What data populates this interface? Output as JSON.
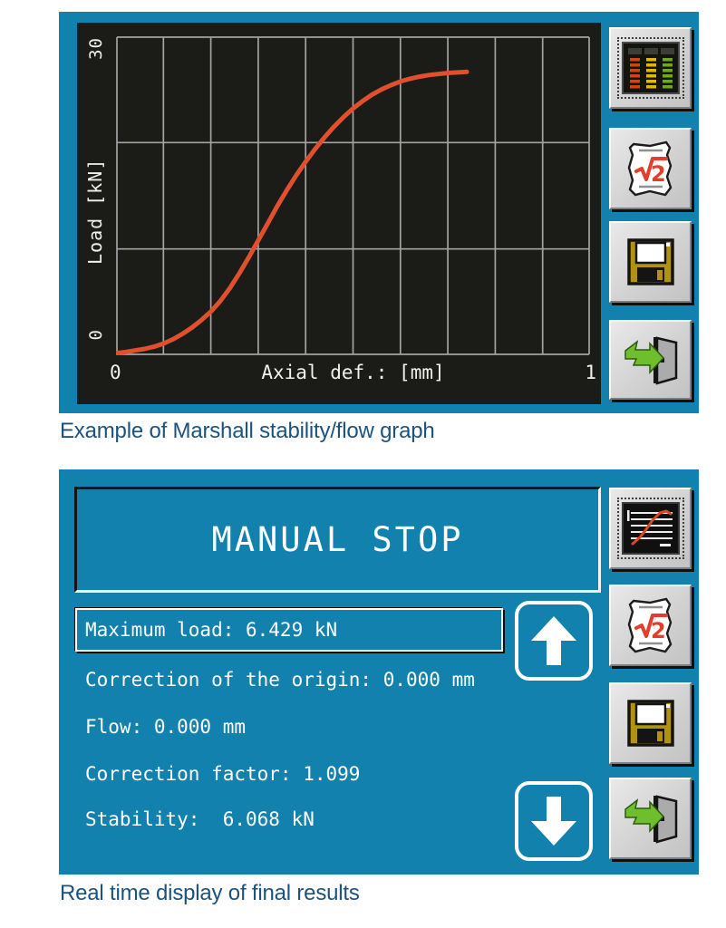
{
  "captions": {
    "top": "Example of Marshall stability/flow graph",
    "bottom": "Real time display of final results"
  },
  "colors": {
    "panel_blue": "#1381AE",
    "screen_dark": "#1B1B17",
    "grid_gray": "#A3A3A3",
    "curve_orange": "#E0502C",
    "caption_blue": "#1A5380",
    "sqrt_red": "#E0402A",
    "arrow_green": "#6FBE2E",
    "floppy_gold": "#B29310"
  },
  "top_screen": {
    "y_tick_max": "30",
    "y_tick_min": "0",
    "y_axis_label": "Load [kN]",
    "x_tick_min": "0",
    "x_tick_max": "1",
    "x_axis_label": "Axial def.: [mm]"
  },
  "chart_data": {
    "type": "line",
    "title": "",
    "xlabel": "Axial def.: [mm]",
    "ylabel": "Load [kN]",
    "xlim": [
      0,
      1
    ],
    "ylim": [
      0,
      30
    ],
    "grid": {
      "columns": 10,
      "rows": 3,
      "color": "#A3A3A3"
    },
    "legend": "none",
    "line_color": "#E0502C",
    "series": [
      {
        "name": "load_vs_axial_deformation",
        "x": [
          0,
          0.02,
          0.04,
          0.06,
          0.08,
          0.1,
          0.12,
          0.14,
          0.16,
          0.18,
          0.2,
          0.22,
          0.24,
          0.26,
          0.28,
          0.3,
          0.32,
          0.34,
          0.36,
          0.38,
          0.4,
          0.42,
          0.44,
          0.46,
          0.48,
          0.5,
          0.52,
          0.54,
          0.56,
          0.58,
          0.6,
          0.62,
          0.64,
          0.66,
          0.68,
          0.7,
          0.72,
          0.74
        ],
        "y": [
          0.2,
          0.3,
          0.45,
          0.6,
          0.8,
          1.1,
          1.5,
          2.0,
          2.6,
          3.3,
          4.1,
          5.1,
          6.3,
          7.7,
          9.2,
          10.8,
          12.4,
          14.0,
          15.5,
          16.9,
          18.2,
          19.4,
          20.5,
          21.5,
          22.4,
          23.2,
          23.9,
          24.5,
          25.0,
          25.4,
          25.75,
          26.0,
          26.2,
          26.35,
          26.45,
          26.55,
          26.6,
          26.65
        ]
      }
    ]
  },
  "bottom_screen": {
    "status_title": "MANUAL STOP",
    "results": [
      {
        "label": "Maximum load: 6.429 kN",
        "selected": true
      },
      {
        "label": "Correction of the origin: 0.000 mm",
        "selected": false
      },
      {
        "label": "Flow: 0.000 mm",
        "selected": false
      },
      {
        "label": "Correction factor: 1.099",
        "selected": false
      },
      {
        "label": "Stability:  6.068 kN",
        "selected": false
      }
    ]
  },
  "icons": {
    "top_buttons": [
      "data-table-icon",
      "sqrt2-icon",
      "save-icon",
      "exit-icon"
    ],
    "bottom_buttons": [
      "graph-report-icon",
      "sqrt2-icon",
      "save-icon",
      "exit-icon"
    ],
    "nav_buttons": [
      "arrow-up-icon",
      "arrow-down-icon"
    ]
  }
}
